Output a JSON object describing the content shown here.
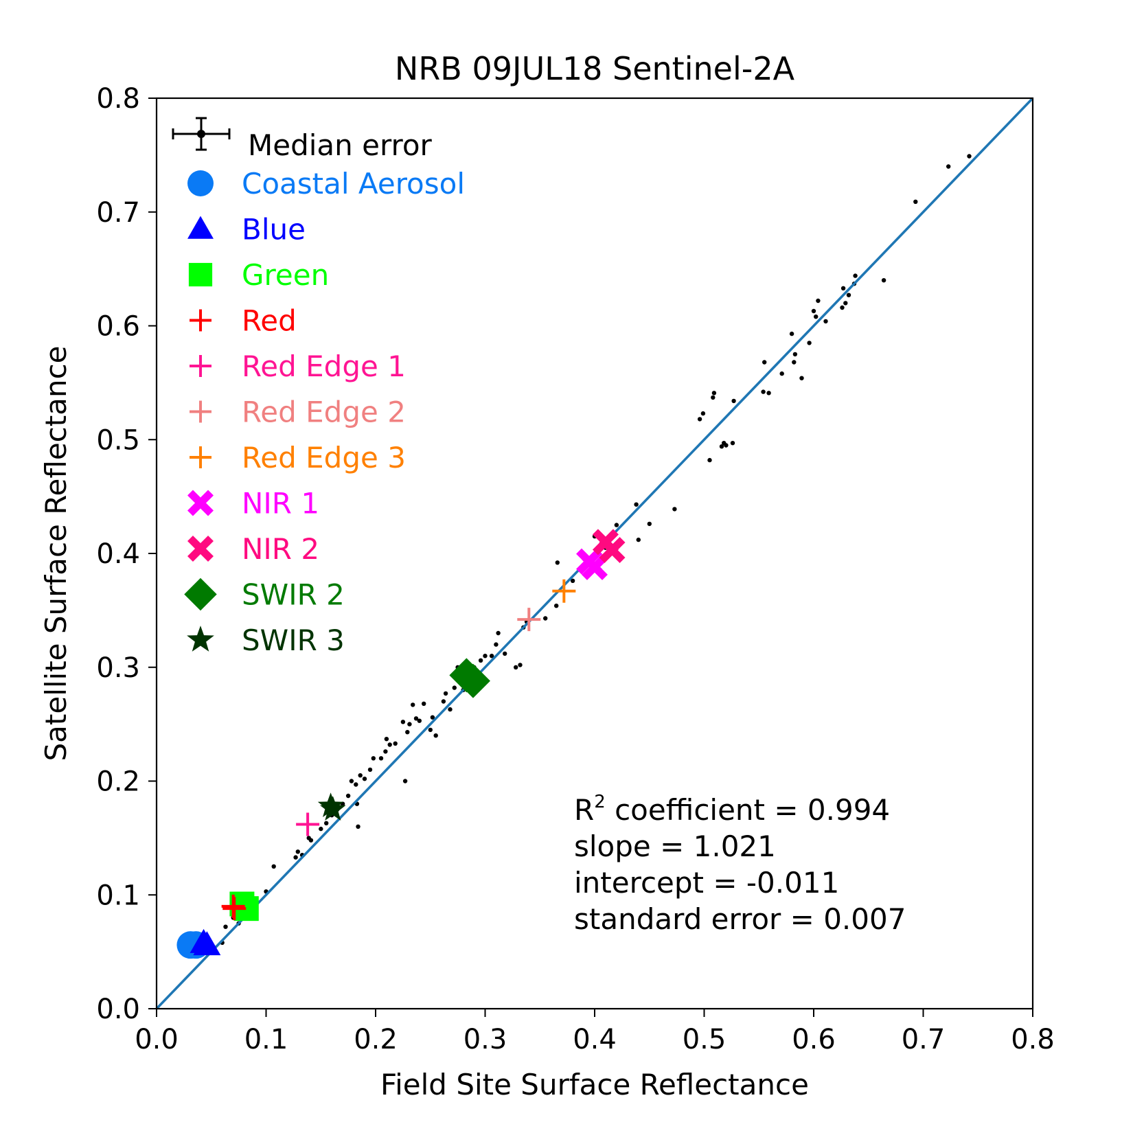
{
  "chart_data": {
    "type": "scatter",
    "title": "NRB 09JUL18 Sentinel-2A",
    "xlabel": "Field Site Surface Reflectance",
    "ylabel": "Satellite Surface Reflectance",
    "xlim": [
      0.0,
      0.8
    ],
    "ylim": [
      0.0,
      0.8
    ],
    "xticks": [
      "0.0",
      "0.1",
      "0.2",
      "0.3",
      "0.4",
      "0.5",
      "0.6",
      "0.7",
      "0.8"
    ],
    "yticks": [
      "0.0",
      "0.1",
      "0.2",
      "0.3",
      "0.4",
      "0.5",
      "0.6",
      "0.7",
      "0.8"
    ],
    "grid": false,
    "legend_position": "top-left",
    "fit_line": {
      "color": "#1f77b4",
      "from": [
        0.0,
        0.0
      ],
      "to": [
        0.8,
        0.8
      ]
    },
    "median_error": {
      "label": "Median error",
      "marker": "errorbar",
      "color": "#000000"
    },
    "series": [
      {
        "name": "Coastal Aerosol",
        "marker": "circle",
        "color": "#0a7af5",
        "points": [
          [
            0.031,
            0.056
          ],
          [
            0.036,
            0.056
          ]
        ]
      },
      {
        "name": "Blue",
        "marker": "triangle",
        "color": "#0000ff",
        "points": [
          [
            0.043,
            0.058
          ],
          [
            0.046,
            0.056
          ]
        ]
      },
      {
        "name": "Green",
        "marker": "square",
        "color": "#00ff00",
        "points": [
          [
            0.078,
            0.092
          ],
          [
            0.082,
            0.088
          ]
        ]
      },
      {
        "name": "Red",
        "marker": "plus",
        "color": "#ff0000",
        "points": [
          [
            0.07,
            0.09
          ],
          [
            0.071,
            0.088
          ]
        ]
      },
      {
        "name": "Red Edge 1",
        "marker": "plus",
        "color": "#ff1493",
        "points": [
          [
            0.138,
            0.162
          ]
        ]
      },
      {
        "name": "Red Edge 2",
        "marker": "plus",
        "color": "#f08080",
        "points": [
          [
            0.34,
            0.342
          ]
        ]
      },
      {
        "name": "Red Edge 3",
        "marker": "plus",
        "color": "#ff8000",
        "points": [
          [
            0.372,
            0.367
          ]
        ]
      },
      {
        "name": "NIR 1",
        "marker": "x",
        "color": "#ff00ff",
        "points": [
          [
            0.395,
            0.393
          ],
          [
            0.4,
            0.388
          ]
        ]
      },
      {
        "name": "NIR 2",
        "marker": "x",
        "color": "#ff0a80",
        "points": [
          [
            0.41,
            0.41
          ],
          [
            0.416,
            0.403
          ]
        ]
      },
      {
        "name": "SWIR 2",
        "marker": "diamond",
        "color": "#007a00",
        "points": [
          [
            0.283,
            0.293
          ],
          [
            0.289,
            0.288
          ]
        ]
      },
      {
        "name": "SWIR 3",
        "marker": "star",
        "color": "#003300",
        "points": [
          [
            0.159,
            0.178
          ],
          [
            0.161,
            0.175
          ]
        ]
      }
    ],
    "scatter_points": [
      [
        0.06,
        0.058
      ],
      [
        0.063,
        0.072
      ],
      [
        0.07,
        0.08
      ],
      [
        0.075,
        0.075
      ],
      [
        0.09,
        0.095
      ],
      [
        0.1,
        0.103
      ],
      [
        0.107,
        0.125
      ],
      [
        0.127,
        0.133
      ],
      [
        0.129,
        0.138
      ],
      [
        0.133,
        0.135
      ],
      [
        0.139,
        0.15
      ],
      [
        0.141,
        0.148
      ],
      [
        0.15,
        0.158
      ],
      [
        0.155,
        0.163
      ],
      [
        0.16,
        0.17
      ],
      [
        0.165,
        0.175
      ],
      [
        0.17,
        0.18
      ],
      [
        0.175,
        0.187
      ],
      [
        0.178,
        0.2
      ],
      [
        0.182,
        0.197
      ],
      [
        0.183,
        0.18
      ],
      [
        0.184,
        0.16
      ],
      [
        0.186,
        0.205
      ],
      [
        0.19,
        0.202
      ],
      [
        0.195,
        0.21
      ],
      [
        0.198,
        0.22
      ],
      [
        0.205,
        0.22
      ],
      [
        0.209,
        0.226
      ],
      [
        0.21,
        0.237
      ],
      [
        0.213,
        0.232
      ],
      [
        0.218,
        0.233
      ],
      [
        0.225,
        0.252
      ],
      [
        0.227,
        0.2
      ],
      [
        0.229,
        0.243
      ],
      [
        0.231,
        0.25
      ],
      [
        0.234,
        0.267
      ],
      [
        0.237,
        0.255
      ],
      [
        0.24,
        0.253
      ],
      [
        0.244,
        0.268
      ],
      [
        0.25,
        0.245
      ],
      [
        0.252,
        0.256
      ],
      [
        0.255,
        0.24
      ],
      [
        0.262,
        0.27
      ],
      [
        0.264,
        0.277
      ],
      [
        0.268,
        0.263
      ],
      [
        0.272,
        0.282
      ],
      [
        0.275,
        0.3
      ],
      [
        0.28,
        0.28
      ],
      [
        0.29,
        0.3
      ],
      [
        0.296,
        0.306
      ],
      [
        0.3,
        0.31
      ],
      [
        0.306,
        0.31
      ],
      [
        0.31,
        0.32
      ],
      [
        0.312,
        0.33
      ],
      [
        0.318,
        0.312
      ],
      [
        0.328,
        0.3
      ],
      [
        0.332,
        0.302
      ],
      [
        0.335,
        0.335
      ],
      [
        0.338,
        0.34
      ],
      [
        0.355,
        0.343
      ],
      [
        0.365,
        0.354
      ],
      [
        0.366,
        0.392
      ],
      [
        0.38,
        0.376
      ],
      [
        0.395,
        0.39
      ],
      [
        0.4,
        0.415
      ],
      [
        0.41,
        0.405
      ],
      [
        0.42,
        0.425
      ],
      [
        0.438,
        0.443
      ],
      [
        0.44,
        0.412
      ],
      [
        0.45,
        0.426
      ],
      [
        0.473,
        0.439
      ],
      [
        0.496,
        0.518
      ],
      [
        0.499,
        0.523
      ],
      [
        0.505,
        0.482
      ],
      [
        0.508,
        0.537
      ],
      [
        0.509,
        0.541
      ],
      [
        0.516,
        0.494
      ],
      [
        0.518,
        0.497
      ],
      [
        0.52,
        0.495
      ],
      [
        0.526,
        0.497
      ],
      [
        0.527,
        0.534
      ],
      [
        0.554,
        0.542
      ],
      [
        0.555,
        0.568
      ],
      [
        0.559,
        0.541
      ],
      [
        0.571,
        0.558
      ],
      [
        0.58,
        0.593
      ],
      [
        0.582,
        0.568
      ],
      [
        0.583,
        0.575
      ],
      [
        0.589,
        0.554
      ],
      [
        0.596,
        0.585
      ],
      [
        0.6,
        0.613
      ],
      [
        0.602,
        0.608
      ],
      [
        0.604,
        0.622
      ],
      [
        0.611,
        0.604
      ],
      [
        0.626,
        0.616
      ],
      [
        0.627,
        0.633
      ],
      [
        0.629,
        0.62
      ],
      [
        0.632,
        0.627
      ],
      [
        0.637,
        0.637
      ],
      [
        0.638,
        0.644
      ],
      [
        0.664,
        0.64
      ],
      [
        0.693,
        0.709
      ],
      [
        0.723,
        0.74
      ],
      [
        0.742,
        0.749
      ]
    ],
    "annotation": {
      "r2_prefix": "R",
      "r2_sup": "2",
      "r2_rest": " coefficient = 0.994",
      "slope": "slope = 1.021",
      "intercept": "intercept = -0.011",
      "stderr": "standard error = 0.007"
    }
  }
}
